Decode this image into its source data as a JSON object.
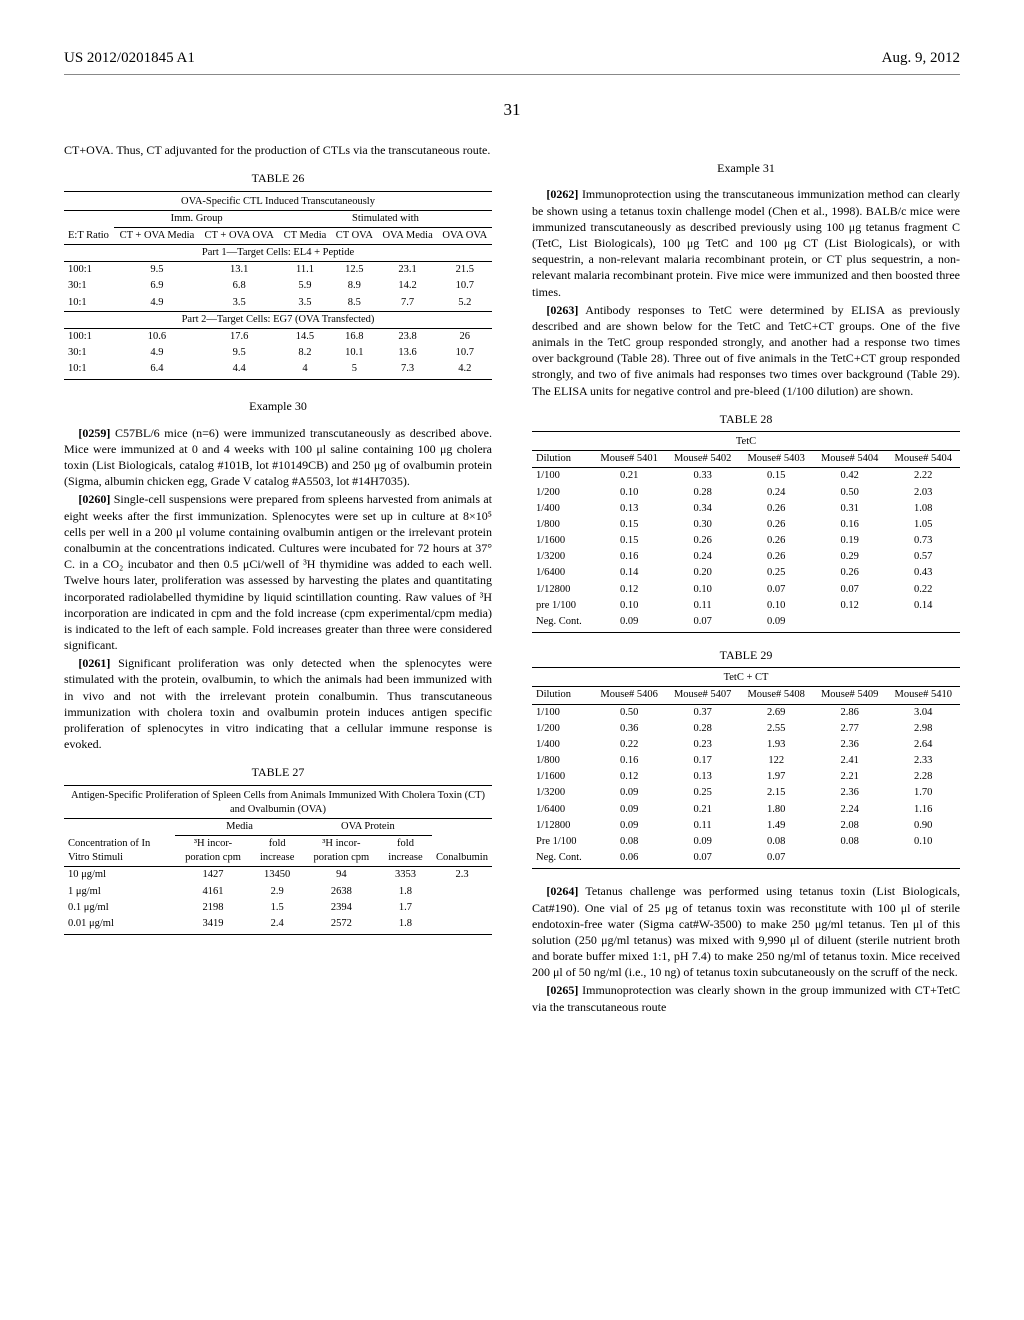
{
  "header": {
    "pub_no": "US 2012/0201845 A1",
    "pub_date": "Aug. 9, 2012",
    "page_num": "31"
  },
  "left": {
    "intro": "CT+OVA. Thus, CT adjuvanted for the production of CTLs via the transcutaneous route.",
    "table26": {
      "label": "TABLE 26",
      "caption": "OVA-Specific CTL Induced Transcutaneously",
      "group_headers": {
        "imm": "Imm. Group",
        "stim": "Stimulated with"
      },
      "col_heads": {
        "ratio": "E:T Ratio",
        "c1": "CT + OVA Media",
        "c2": "CT + OVA OVA",
        "c3": "CT Media",
        "c4": "CT OVA",
        "c5": "OVA Media",
        "c6": "OVA OVA"
      },
      "part1_label": "Part 1—Target Cells: EL4 + Peptide",
      "part1_rows": [
        [
          "100:1",
          "9.5",
          "13.1",
          "11.1",
          "12.5",
          "23.1",
          "21.5"
        ],
        [
          "30:1",
          "6.9",
          "6.8",
          "5.9",
          "8.9",
          "14.2",
          "10.7"
        ],
        [
          "10:1",
          "4.9",
          "3.5",
          "3.5",
          "8.5",
          "7.7",
          "5.2"
        ]
      ],
      "part2_label": "Part 2—Target Cells: EG7 (OVA Transfected)",
      "part2_rows": [
        [
          "100:1",
          "10.6",
          "17.6",
          "14.5",
          "16.8",
          "23.8",
          "26"
        ],
        [
          "30:1",
          "4.9",
          "9.5",
          "8.2",
          "10.1",
          "13.6",
          "10.7"
        ],
        [
          "10:1",
          "6.4",
          "4.4",
          "4",
          "5",
          "7.3",
          "4.2"
        ]
      ]
    },
    "example30": {
      "heading": "Example 30",
      "p0259_num": "[0259]",
      "p0259": "C57BL/6 mice (n=6) were immunized transcutaneously as described above. Mice were immunized at 0 and 4 weeks with 100 μl saline containing 100 μg cholera toxin (List Biologicals, catalog #101B, lot #10149CB) and 250 μg of ovalbumin protein (Sigma, albumin chicken egg, Grade V catalog #A5503, lot #14H7035).",
      "p0260_num": "[0260]",
      "p0260": "Single-cell suspensions were prepared from spleens harvested from animals at eight weeks after the first immunization. Splenocytes were set up in culture at 8×10⁵ cells per well in a 200 μl volume containing ovalbumin antigen or the irrelevant protein conalbumin at the concentrations indicated. Cultures were incubated for 72 hours at 37° C. in a CO₂ incubator and then 0.5 μCi/well of ³H thymidine was added to each well. Twelve hours later, proliferation was assessed by harvesting the plates and quantitating incorporated radiolabelled thymidine by liquid scintillation counting. Raw values of ³H incorporation are indicated in cpm and the fold increase (cpm experimental/cpm media) is indicated to the left of each sample. Fold increases greater than three were considered significant.",
      "p0261_num": "[0261]",
      "p0261": "Significant proliferation was only detected when the splenocytes were stimulated with the protein, ovalbumin, to which the animals had been immunized with in vivo and not with the irrelevant protein conalbumin. Thus transcutaneous immunization with cholera toxin and ovalbumin protein induces antigen specific proliferation of splenocytes in vitro indicating that a cellular immune response is evoked."
    },
    "table27": {
      "label": "TABLE 27",
      "caption": "Antigen-Specific Proliferation of Spleen Cells from Animals Immunized With Cholera Toxin (CT) and Ovalbumin (OVA)",
      "group_headers": {
        "media": "Media",
        "ova": "OVA Protein"
      },
      "col_heads": {
        "conc": "Concentration of In Vitro Stimuli",
        "h1": "³H incor-poration cpm",
        "f1": "fold increase",
        "h2": "³H incor-poration cpm",
        "f2": "fold increase",
        "con": "Conalbumin"
      },
      "rows": [
        [
          "10 μg/ml",
          "1427",
          "13450",
          "94",
          "3353",
          "2.3"
        ],
        [
          "1 μg/ml",
          "4161",
          "2.9",
          "2638",
          "1.8",
          ""
        ],
        [
          "0.1 μg/ml",
          "2198",
          "1.5",
          "2394",
          "1.7",
          ""
        ],
        [
          "0.01 μg/ml",
          "3419",
          "2.4",
          "2572",
          "1.8",
          ""
        ]
      ]
    }
  },
  "right": {
    "example31": {
      "heading": "Example 31",
      "p0262_num": "[0262]",
      "p0262": "Immunoprotection using the transcutaneous immunization method can clearly be shown using a tetanus toxin challenge model (Chen et al., 1998). BALB/c mice were immunized transcutaneously as described previously using 100 μg tetanus fragment C (TetC, List Biologicals), 100 μg TetC and 100 μg CT (List Biologicals), or with sequestrin, a non-relevant malaria recombinant protein, or CT plus sequestrin, a non-relevant malaria recombinant protein. Five mice were immunized and then boosted three times.",
      "p0263_num": "[0263]",
      "p0263": "Antibody responses to TetC were determined by ELISA as previously described and are shown below for the TetC and TetC+CT groups. One of the five animals in the TetC group responded strongly, and another had a response two times over background (Table 28). Three out of five animals in the TetC+CT group responded strongly, and two of five animals had responses two times over background (Table 29). The ELISA units for negative control and pre-bleed (1/100 dilution) are shown."
    },
    "table28": {
      "label": "TABLE 28",
      "caption": "TetC",
      "col_heads": {
        "dil": "Dilution",
        "m1": "Mouse# 5401",
        "m2": "Mouse# 5402",
        "m3": "Mouse# 5403",
        "m4": "Mouse# 5404",
        "m5": "Mouse# 5404"
      },
      "rows": [
        [
          "1/100",
          "0.21",
          "0.33",
          "0.15",
          "0.42",
          "2.22"
        ],
        [
          "1/200",
          "0.10",
          "0.28",
          "0.24",
          "0.50",
          "2.03"
        ],
        [
          "1/400",
          "0.13",
          "0.34",
          "0.26",
          "0.31",
          "1.08"
        ],
        [
          "1/800",
          "0.15",
          "0.30",
          "0.26",
          "0.16",
          "1.05"
        ],
        [
          "1/1600",
          "0.15",
          "0.26",
          "0.26",
          "0.19",
          "0.73"
        ],
        [
          "1/3200",
          "0.16",
          "0.24",
          "0.26",
          "0.29",
          "0.57"
        ],
        [
          "1/6400",
          "0.14",
          "0.20",
          "0.25",
          "0.26",
          "0.43"
        ],
        [
          "1/12800",
          "0.12",
          "0.10",
          "0.07",
          "0.07",
          "0.22"
        ],
        [
          "pre 1/100",
          "0.10",
          "0.11",
          "0.10",
          "0.12",
          "0.14"
        ],
        [
          "Neg. Cont.",
          "0.09",
          "0.07",
          "0.09",
          "",
          ""
        ]
      ]
    },
    "table29": {
      "label": "TABLE 29",
      "caption": "TetC + CT",
      "col_heads": {
        "dil": "Dilution",
        "m1": "Mouse# 5406",
        "m2": "Mouse# 5407",
        "m3": "Mouse# 5408",
        "m4": "Mouse# 5409",
        "m5": "Mouse# 5410"
      },
      "rows": [
        [
          "1/100",
          "0.50",
          "0.37",
          "2.69",
          "2.86",
          "3.04"
        ],
        [
          "1/200",
          "0.36",
          "0.28",
          "2.55",
          "2.77",
          "2.98"
        ],
        [
          "1/400",
          "0.22",
          "0.23",
          "1.93",
          "2.36",
          "2.64"
        ],
        [
          "1/800",
          "0.16",
          "0.17",
          "122",
          "2.41",
          "2.33"
        ],
        [
          "1/1600",
          "0.12",
          "0.13",
          "1.97",
          "2.21",
          "2.28"
        ],
        [
          "1/3200",
          "0.09",
          "0.25",
          "2.15",
          "2.36",
          "1.70"
        ],
        [
          "1/6400",
          "0.09",
          "0.21",
          "1.80",
          "2.24",
          "1.16"
        ],
        [
          "1/12800",
          "0.09",
          "0.11",
          "1.49",
          "2.08",
          "0.90"
        ],
        [
          "Pre 1/100",
          "0.08",
          "0.09",
          "0.08",
          "0.08",
          "0.10"
        ],
        [
          "Neg. Cont.",
          "0.06",
          "0.07",
          "0.07",
          "",
          ""
        ]
      ]
    },
    "p0264_num": "[0264]",
    "p0264": "Tetanus challenge was performed using tetanus toxin (List Biologicals, Cat#190). One vial of 25 μg of tetanus toxin was reconstitute with 100 μl of sterile endotoxin-free water (Sigma cat#W-3500) to make 250 μg/ml tetanus. Ten μl of this solution (250 μg/ml tetanus) was mixed with 9,990 μl of diluent (sterile nutrient broth and borate buffer mixed 1:1, pH 7.4) to make 250 ng/ml of tetanus toxin. Mice received 200 μl of 50 ng/ml (i.e., 10 ng) of tetanus toxin subcutaneously on the scruff of the neck.",
    "p0265_num": "[0265]",
    "p0265": "Immunoprotection was clearly shown in the group immunized with CT+TetC via the transcutaneous route"
  }
}
